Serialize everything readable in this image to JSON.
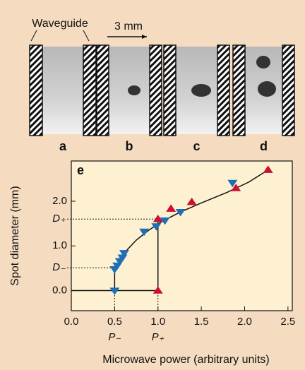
{
  "photo_panel": {
    "waveguide_label": "Waveguide",
    "scale_label": "3 mm",
    "panel_labels": [
      "a",
      "b",
      "c",
      "d"
    ]
  },
  "chart_data": {
    "type": "scatter",
    "panel_label": "e",
    "x_label": "Microwave power (arbitrary units)",
    "y_label": "Spot diameter (mm)",
    "xlim": [
      0,
      2.55
    ],
    "ylim": [
      -0.45,
      2.9
    ],
    "xticks": [
      {
        "value": 0,
        "label": "0.0"
      },
      {
        "value": 0.5,
        "label": "0.5"
      },
      {
        "value": 1,
        "label": "1.0"
      },
      {
        "value": 1.5,
        "label": "1.5"
      },
      {
        "value": 2,
        "label": "2.0"
      },
      {
        "value": 2.5,
        "label": "2.5"
      }
    ],
    "yticks": [
      {
        "value": 0,
        "label": "0.0"
      },
      {
        "value": 1,
        "label": "1.0"
      },
      {
        "value": 2,
        "label": "2.0"
      }
    ],
    "series": [
      {
        "color": "#1f6fb5",
        "marker": "triangle-down",
        "x": [
          0.5,
          0.5,
          0.53,
          0.56,
          0.59,
          0.61,
          0.84,
          0.98,
          1.08,
          1.26,
          1.86
        ],
        "values": [
          0.0,
          0.48,
          0.56,
          0.66,
          0.74,
          0.84,
          1.32,
          1.44,
          1.57,
          1.76,
          2.41
        ]
      },
      {
        "color": "#cc1030",
        "marker": "triangle-up",
        "x": [
          1.0,
          1.0,
          1.15,
          1.39,
          1.9,
          2.27
        ],
        "values": [
          0.0,
          1.6,
          1.83,
          1.98,
          2.29,
          2.7
        ]
      }
    ],
    "lines": [
      {
        "x": [
          0.5,
          0.6,
          0.75,
          0.9,
          1.05,
          1.25,
          1.5,
          1.8,
          2.05,
          2.27
        ],
        "values": [
          0.48,
          0.82,
          1.13,
          1.36,
          1.55,
          1.75,
          1.96,
          2.2,
          2.43,
          2.7
        ]
      },
      {
        "x": [
          0,
          1.0
        ],
        "values": [
          0,
          0
        ]
      },
      {
        "x": [
          0.5,
          0.5
        ],
        "values": [
          0,
          0.48
        ]
      },
      {
        "x": [
          1.0,
          1.0
        ],
        "values": [
          0,
          1.6
        ]
      }
    ],
    "reference_lines": [
      {
        "axis": "y",
        "value": 1.6,
        "end": 1.0,
        "label": "D₊"
      },
      {
        "axis": "y",
        "value": 0.51,
        "end": 0.5,
        "label": "D₋"
      },
      {
        "axis": "x",
        "value": 0.5,
        "end": 0,
        "label": "P₋"
      },
      {
        "axis": "x",
        "value": 1.0,
        "end": 0,
        "label": "P₊"
      }
    ]
  }
}
